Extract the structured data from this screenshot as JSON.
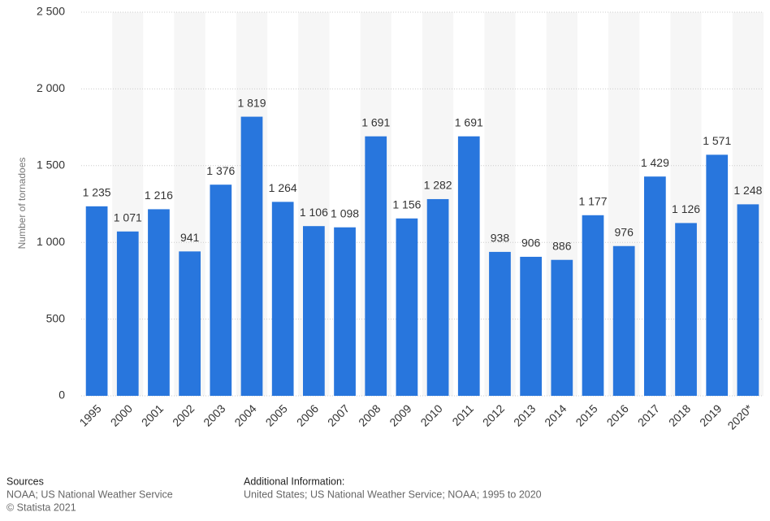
{
  "chart_data": {
    "type": "bar",
    "ylabel": "Number of tornadoes",
    "categories": [
      "1995",
      "2000",
      "2001",
      "2002",
      "2003",
      "2004",
      "2005",
      "2006",
      "2007",
      "2008",
      "2009",
      "2010",
      "2011",
      "2012",
      "2013",
      "2014",
      "2015",
      "2016",
      "2017",
      "2018",
      "2019",
      "2020*"
    ],
    "values": [
      1235,
      1071,
      1216,
      941,
      1376,
      1819,
      1264,
      1106,
      1098,
      1691,
      1156,
      1282,
      1691,
      938,
      906,
      886,
      1177,
      976,
      1429,
      1126,
      1571,
      1248
    ],
    "value_labels": [
      "1 235",
      "1 071",
      "1 216",
      "941",
      "1 376",
      "1 819",
      "1 264",
      "1 106",
      "1 098",
      "1 691",
      "1 156",
      "1 282",
      "1 691",
      "938",
      "906",
      "886",
      "1 177",
      "976",
      "1 429",
      "1 126",
      "1 571",
      "1 248"
    ],
    "color": "#2876dd",
    "ylim": [
      0,
      2500
    ],
    "yticks": [
      0,
      500,
      {
        "value": 1000,
        "label": "1 000"
      },
      {
        "value": 1500,
        "label": "1 500"
      },
      {
        "value": 2000,
        "label": "2 000"
      },
      {
        "value": 2500,
        "label": "2 500"
      }
    ],
    "grid": true
  },
  "footer": {
    "sources_title": "Sources",
    "sources": "NOAA; US National Weather Service",
    "copyright": "© Statista 2021",
    "additional_title": "Additional Information:",
    "additional": "United States; US National Weather Service; NOAA; 1995 to 2020"
  }
}
